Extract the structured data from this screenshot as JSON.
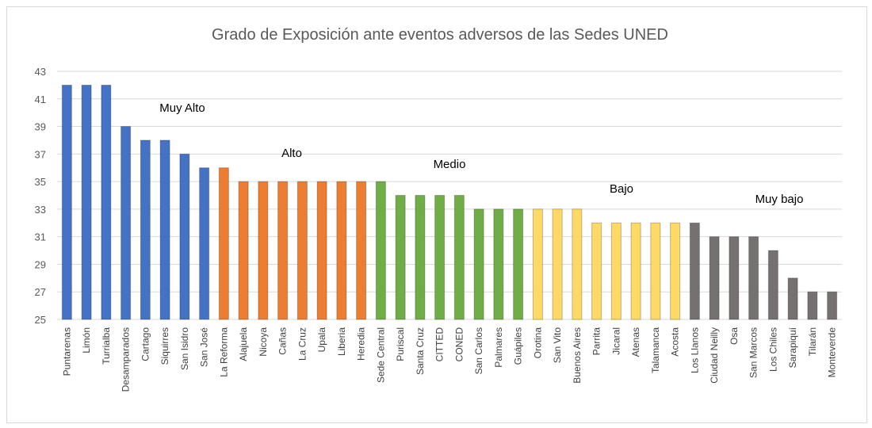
{
  "chart_data": {
    "type": "bar",
    "title": "Grado de Exposición ante eventos adversos de las Sedes UNED",
    "xlabel": "",
    "ylabel": "",
    "ylim": [
      25,
      43
    ],
    "yticks": [
      25,
      27,
      29,
      31,
      33,
      35,
      37,
      39,
      41,
      43
    ],
    "grid": true,
    "legend": "none",
    "categories": [
      "Puntarenas",
      "Limón",
      "Turrialba",
      "Desamparados",
      "Cartago",
      "Siquirres",
      "San Isidro",
      "San José",
      "La Reforma",
      "Alajuela",
      "Nicoya",
      "Cañas",
      "La Cruz",
      "Upala",
      "Liberia",
      "Heredia",
      "Sede Central",
      "Puriscal",
      "Santa Cruz",
      "CITTED",
      "CONED",
      "San Carlos",
      "Palmares",
      "Guápiles",
      "Orotina",
      "San Vito",
      "Buenos Aires",
      "Parrita",
      "Jicaral",
      "Atenas",
      "Talamanca",
      "Acosta",
      "Los Llanos",
      "Ciudad Neilly",
      "Osa",
      "San Marcos",
      "Los Chiles",
      "Sarapiquí",
      "Tilarán",
      "Monteverde"
    ],
    "values": [
      42,
      42,
      42,
      39,
      38,
      38,
      37,
      36,
      36,
      35,
      35,
      35,
      35,
      35,
      35,
      35,
      35,
      34,
      34,
      34,
      34,
      33,
      33,
      33,
      33,
      33,
      33,
      32,
      32,
      32,
      32,
      32,
      32,
      31,
      31,
      31,
      30,
      28,
      27,
      27
    ],
    "groups": [
      {
        "name": "Muy Alto",
        "color": "#4472c4",
        "count": 8
      },
      {
        "name": "Alto",
        "color": "#ed7d31",
        "count": 8
      },
      {
        "name": "Medio",
        "color": "#70ad47",
        "count": 8
      },
      {
        "name": "Bajo",
        "color": "#ffd966",
        "count": 8
      },
      {
        "name": "Muy bajo",
        "color": "#767171",
        "count": 8
      }
    ]
  }
}
